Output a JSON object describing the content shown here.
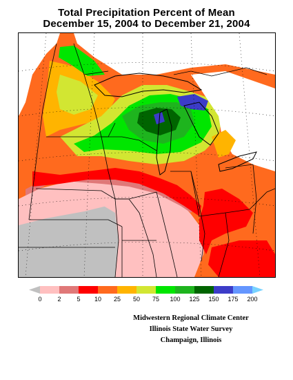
{
  "title": {
    "line1": "Total Precipitation Percent of Mean",
    "line2": "December 15, 2004 to December 21, 2004"
  },
  "legend": {
    "colors": [
      "#c0c0c0",
      "#ffc0c0",
      "#e07878",
      "#ff0000",
      "#ff6a1e",
      "#ffb400",
      "#d2e632",
      "#00e600",
      "#1eb41e",
      "#006400",
      "#3c3cc8",
      "#6496ff",
      "#78d2ff"
    ],
    "labels": [
      "0",
      "2",
      "5",
      "10",
      "25",
      "50",
      "75",
      "100",
      "125",
      "150",
      "175",
      "200"
    ]
  },
  "credits": {
    "line1": "Midwestern Regional Climate Center",
    "line2": "Illinois State Water Survey",
    "line3": "Champaign, Illinois"
  }
}
